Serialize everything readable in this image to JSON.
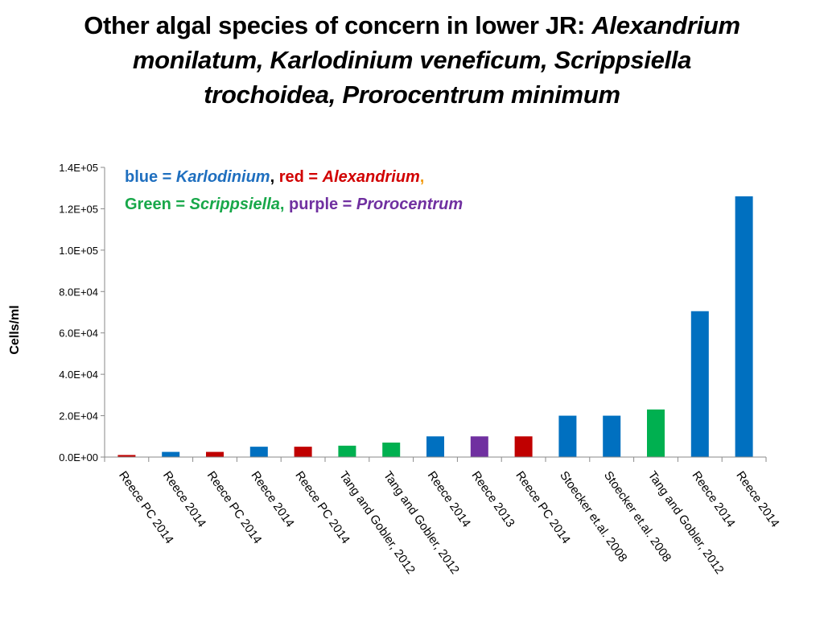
{
  "title": {
    "line1_plain": "Other algal species of concern in lower JR:  ",
    "line1_italic": "Alexandrium",
    "line2_italic": "monilatum, Karlodinium veneficum, Scrippsiella",
    "line3_italic": "trochoidea, Prorocentrum minimum"
  },
  "legend": {
    "line1": [
      {
        "text": "blue = ",
        "color": "#1f6fbf",
        "italic": false
      },
      {
        "text": "Karlodinium",
        "color": "#1f6fbf",
        "italic": true
      },
      {
        "text": ", ",
        "color": "#000000",
        "italic": false
      },
      {
        "text": "red = ",
        "color": "#d10000",
        "italic": false
      },
      {
        "text": "Alexandrium",
        "color": "#d10000",
        "italic": true
      },
      {
        "text": ",",
        "color": "#f39c12",
        "italic": false
      }
    ],
    "line2": [
      {
        "text": "Green = ",
        "color": "#18a84a",
        "italic": false
      },
      {
        "text": "Scrippsiella",
        "color": "#18a84a",
        "italic": true
      },
      {
        "text": ", ",
        "color": "#18a84a",
        "italic": false
      },
      {
        "text": "purple = ",
        "color": "#7030a0",
        "italic": false
      },
      {
        "text": "Prorocentrum",
        "color": "#7030a0",
        "italic": true
      }
    ]
  },
  "chart_data": {
    "type": "bar",
    "ylabel": "Cells/ml",
    "xlabel": "",
    "ylim": [
      0,
      140000
    ],
    "yticks": [
      {
        "value": 0,
        "label": "0.0E+00"
      },
      {
        "value": 20000,
        "label": "2.0E+04"
      },
      {
        "value": 40000,
        "label": "4.0E+04"
      },
      {
        "value": 60000,
        "label": "6.0E+04"
      },
      {
        "value": 80000,
        "label": "8.0E+04"
      },
      {
        "value": 100000,
        "label": "1.0E+05"
      },
      {
        "value": 120000,
        "label": "1.2E+05"
      },
      {
        "value": 140000,
        "label": "1.4E+05"
      }
    ],
    "categories": [
      "Reece PC 2014",
      "Reece 2014",
      "Reece PC 2014",
      "Reece 2014",
      "Reece PC 2014",
      "Tang and Gobler, 2012",
      "Tang and Gobler, 2012",
      "Reece 2014",
      "Reece 2013",
      "Reece PC 2014",
      "Stoecker et.al. 2008",
      "Stoecker et.al. 2008",
      "Tang and Gobler, 2012",
      "Reece 2014",
      "Reece 2014"
    ],
    "values": [
      1000,
      2500,
      2500,
      5000,
      5000,
      5500,
      7000,
      10000,
      10000,
      10000,
      20000,
      20000,
      23000,
      70500,
      126000
    ],
    "colors": [
      "#c00000",
      "#0070c0",
      "#c00000",
      "#0070c0",
      "#c00000",
      "#00b050",
      "#00b050",
      "#0070c0",
      "#7030a0",
      "#c00000",
      "#0070c0",
      "#0070c0",
      "#00b050",
      "#0070c0",
      "#0070c0"
    ],
    "grid": false
  }
}
